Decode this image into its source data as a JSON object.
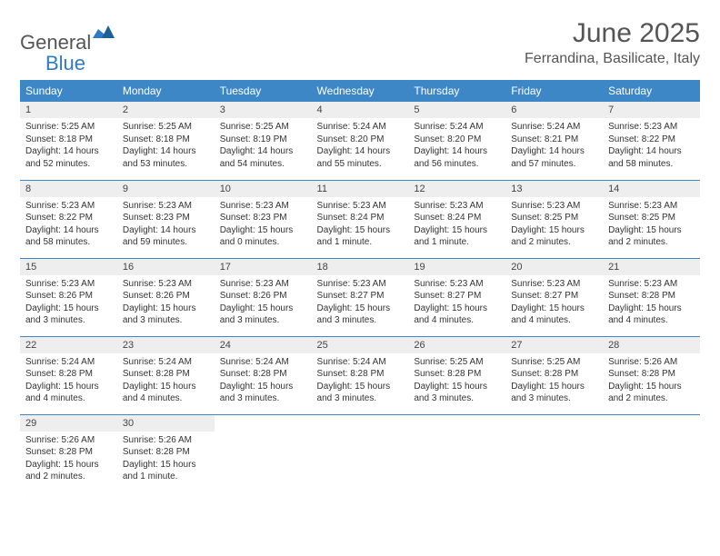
{
  "brand": {
    "word1": "General",
    "word2": "Blue",
    "mark_color": "#2f7bbf",
    "text_gray": "#555555"
  },
  "header": {
    "title": "June 2025",
    "location": "Ferrandina, Basilicate, Italy"
  },
  "colors": {
    "header_bg": "#3d87c7",
    "header_text": "#ffffff",
    "daynum_bg": "#eeeeee",
    "rule": "#3d87c7",
    "body_text": "#333333",
    "page_bg": "#ffffff"
  },
  "weekdays": [
    "Sunday",
    "Monday",
    "Tuesday",
    "Wednesday",
    "Thursday",
    "Friday",
    "Saturday"
  ],
  "days": [
    {
      "n": "1",
      "sr": "Sunrise: 5:25 AM",
      "ss": "Sunset: 8:18 PM",
      "dl": "Daylight: 14 hours and 52 minutes."
    },
    {
      "n": "2",
      "sr": "Sunrise: 5:25 AM",
      "ss": "Sunset: 8:18 PM",
      "dl": "Daylight: 14 hours and 53 minutes."
    },
    {
      "n": "3",
      "sr": "Sunrise: 5:25 AM",
      "ss": "Sunset: 8:19 PM",
      "dl": "Daylight: 14 hours and 54 minutes."
    },
    {
      "n": "4",
      "sr": "Sunrise: 5:24 AM",
      "ss": "Sunset: 8:20 PM",
      "dl": "Daylight: 14 hours and 55 minutes."
    },
    {
      "n": "5",
      "sr": "Sunrise: 5:24 AM",
      "ss": "Sunset: 8:20 PM",
      "dl": "Daylight: 14 hours and 56 minutes."
    },
    {
      "n": "6",
      "sr": "Sunrise: 5:24 AM",
      "ss": "Sunset: 8:21 PM",
      "dl": "Daylight: 14 hours and 57 minutes."
    },
    {
      "n": "7",
      "sr": "Sunrise: 5:23 AM",
      "ss": "Sunset: 8:22 PM",
      "dl": "Daylight: 14 hours and 58 minutes."
    },
    {
      "n": "8",
      "sr": "Sunrise: 5:23 AM",
      "ss": "Sunset: 8:22 PM",
      "dl": "Daylight: 14 hours and 58 minutes."
    },
    {
      "n": "9",
      "sr": "Sunrise: 5:23 AM",
      "ss": "Sunset: 8:23 PM",
      "dl": "Daylight: 14 hours and 59 minutes."
    },
    {
      "n": "10",
      "sr": "Sunrise: 5:23 AM",
      "ss": "Sunset: 8:23 PM",
      "dl": "Daylight: 15 hours and 0 minutes."
    },
    {
      "n": "11",
      "sr": "Sunrise: 5:23 AM",
      "ss": "Sunset: 8:24 PM",
      "dl": "Daylight: 15 hours and 1 minute."
    },
    {
      "n": "12",
      "sr": "Sunrise: 5:23 AM",
      "ss": "Sunset: 8:24 PM",
      "dl": "Daylight: 15 hours and 1 minute."
    },
    {
      "n": "13",
      "sr": "Sunrise: 5:23 AM",
      "ss": "Sunset: 8:25 PM",
      "dl": "Daylight: 15 hours and 2 minutes."
    },
    {
      "n": "14",
      "sr": "Sunrise: 5:23 AM",
      "ss": "Sunset: 8:25 PM",
      "dl": "Daylight: 15 hours and 2 minutes."
    },
    {
      "n": "15",
      "sr": "Sunrise: 5:23 AM",
      "ss": "Sunset: 8:26 PM",
      "dl": "Daylight: 15 hours and 3 minutes."
    },
    {
      "n": "16",
      "sr": "Sunrise: 5:23 AM",
      "ss": "Sunset: 8:26 PM",
      "dl": "Daylight: 15 hours and 3 minutes."
    },
    {
      "n": "17",
      "sr": "Sunrise: 5:23 AM",
      "ss": "Sunset: 8:26 PM",
      "dl": "Daylight: 15 hours and 3 minutes."
    },
    {
      "n": "18",
      "sr": "Sunrise: 5:23 AM",
      "ss": "Sunset: 8:27 PM",
      "dl": "Daylight: 15 hours and 3 minutes."
    },
    {
      "n": "19",
      "sr": "Sunrise: 5:23 AM",
      "ss": "Sunset: 8:27 PM",
      "dl": "Daylight: 15 hours and 4 minutes."
    },
    {
      "n": "20",
      "sr": "Sunrise: 5:23 AM",
      "ss": "Sunset: 8:27 PM",
      "dl": "Daylight: 15 hours and 4 minutes."
    },
    {
      "n": "21",
      "sr": "Sunrise: 5:23 AM",
      "ss": "Sunset: 8:28 PM",
      "dl": "Daylight: 15 hours and 4 minutes."
    },
    {
      "n": "22",
      "sr": "Sunrise: 5:24 AM",
      "ss": "Sunset: 8:28 PM",
      "dl": "Daylight: 15 hours and 4 minutes."
    },
    {
      "n": "23",
      "sr": "Sunrise: 5:24 AM",
      "ss": "Sunset: 8:28 PM",
      "dl": "Daylight: 15 hours and 4 minutes."
    },
    {
      "n": "24",
      "sr": "Sunrise: 5:24 AM",
      "ss": "Sunset: 8:28 PM",
      "dl": "Daylight: 15 hours and 3 minutes."
    },
    {
      "n": "25",
      "sr": "Sunrise: 5:24 AM",
      "ss": "Sunset: 8:28 PM",
      "dl": "Daylight: 15 hours and 3 minutes."
    },
    {
      "n": "26",
      "sr": "Sunrise: 5:25 AM",
      "ss": "Sunset: 8:28 PM",
      "dl": "Daylight: 15 hours and 3 minutes."
    },
    {
      "n": "27",
      "sr": "Sunrise: 5:25 AM",
      "ss": "Sunset: 8:28 PM",
      "dl": "Daylight: 15 hours and 3 minutes."
    },
    {
      "n": "28",
      "sr": "Sunrise: 5:26 AM",
      "ss": "Sunset: 8:28 PM",
      "dl": "Daylight: 15 hours and 2 minutes."
    },
    {
      "n": "29",
      "sr": "Sunrise: 5:26 AM",
      "ss": "Sunset: 8:28 PM",
      "dl": "Daylight: 15 hours and 2 minutes."
    },
    {
      "n": "30",
      "sr": "Sunrise: 5:26 AM",
      "ss": "Sunset: 8:28 PM",
      "dl": "Daylight: 15 hours and 1 minute."
    }
  ],
  "grid": {
    "first_weekday_index": 0,
    "total_cells": 35
  }
}
